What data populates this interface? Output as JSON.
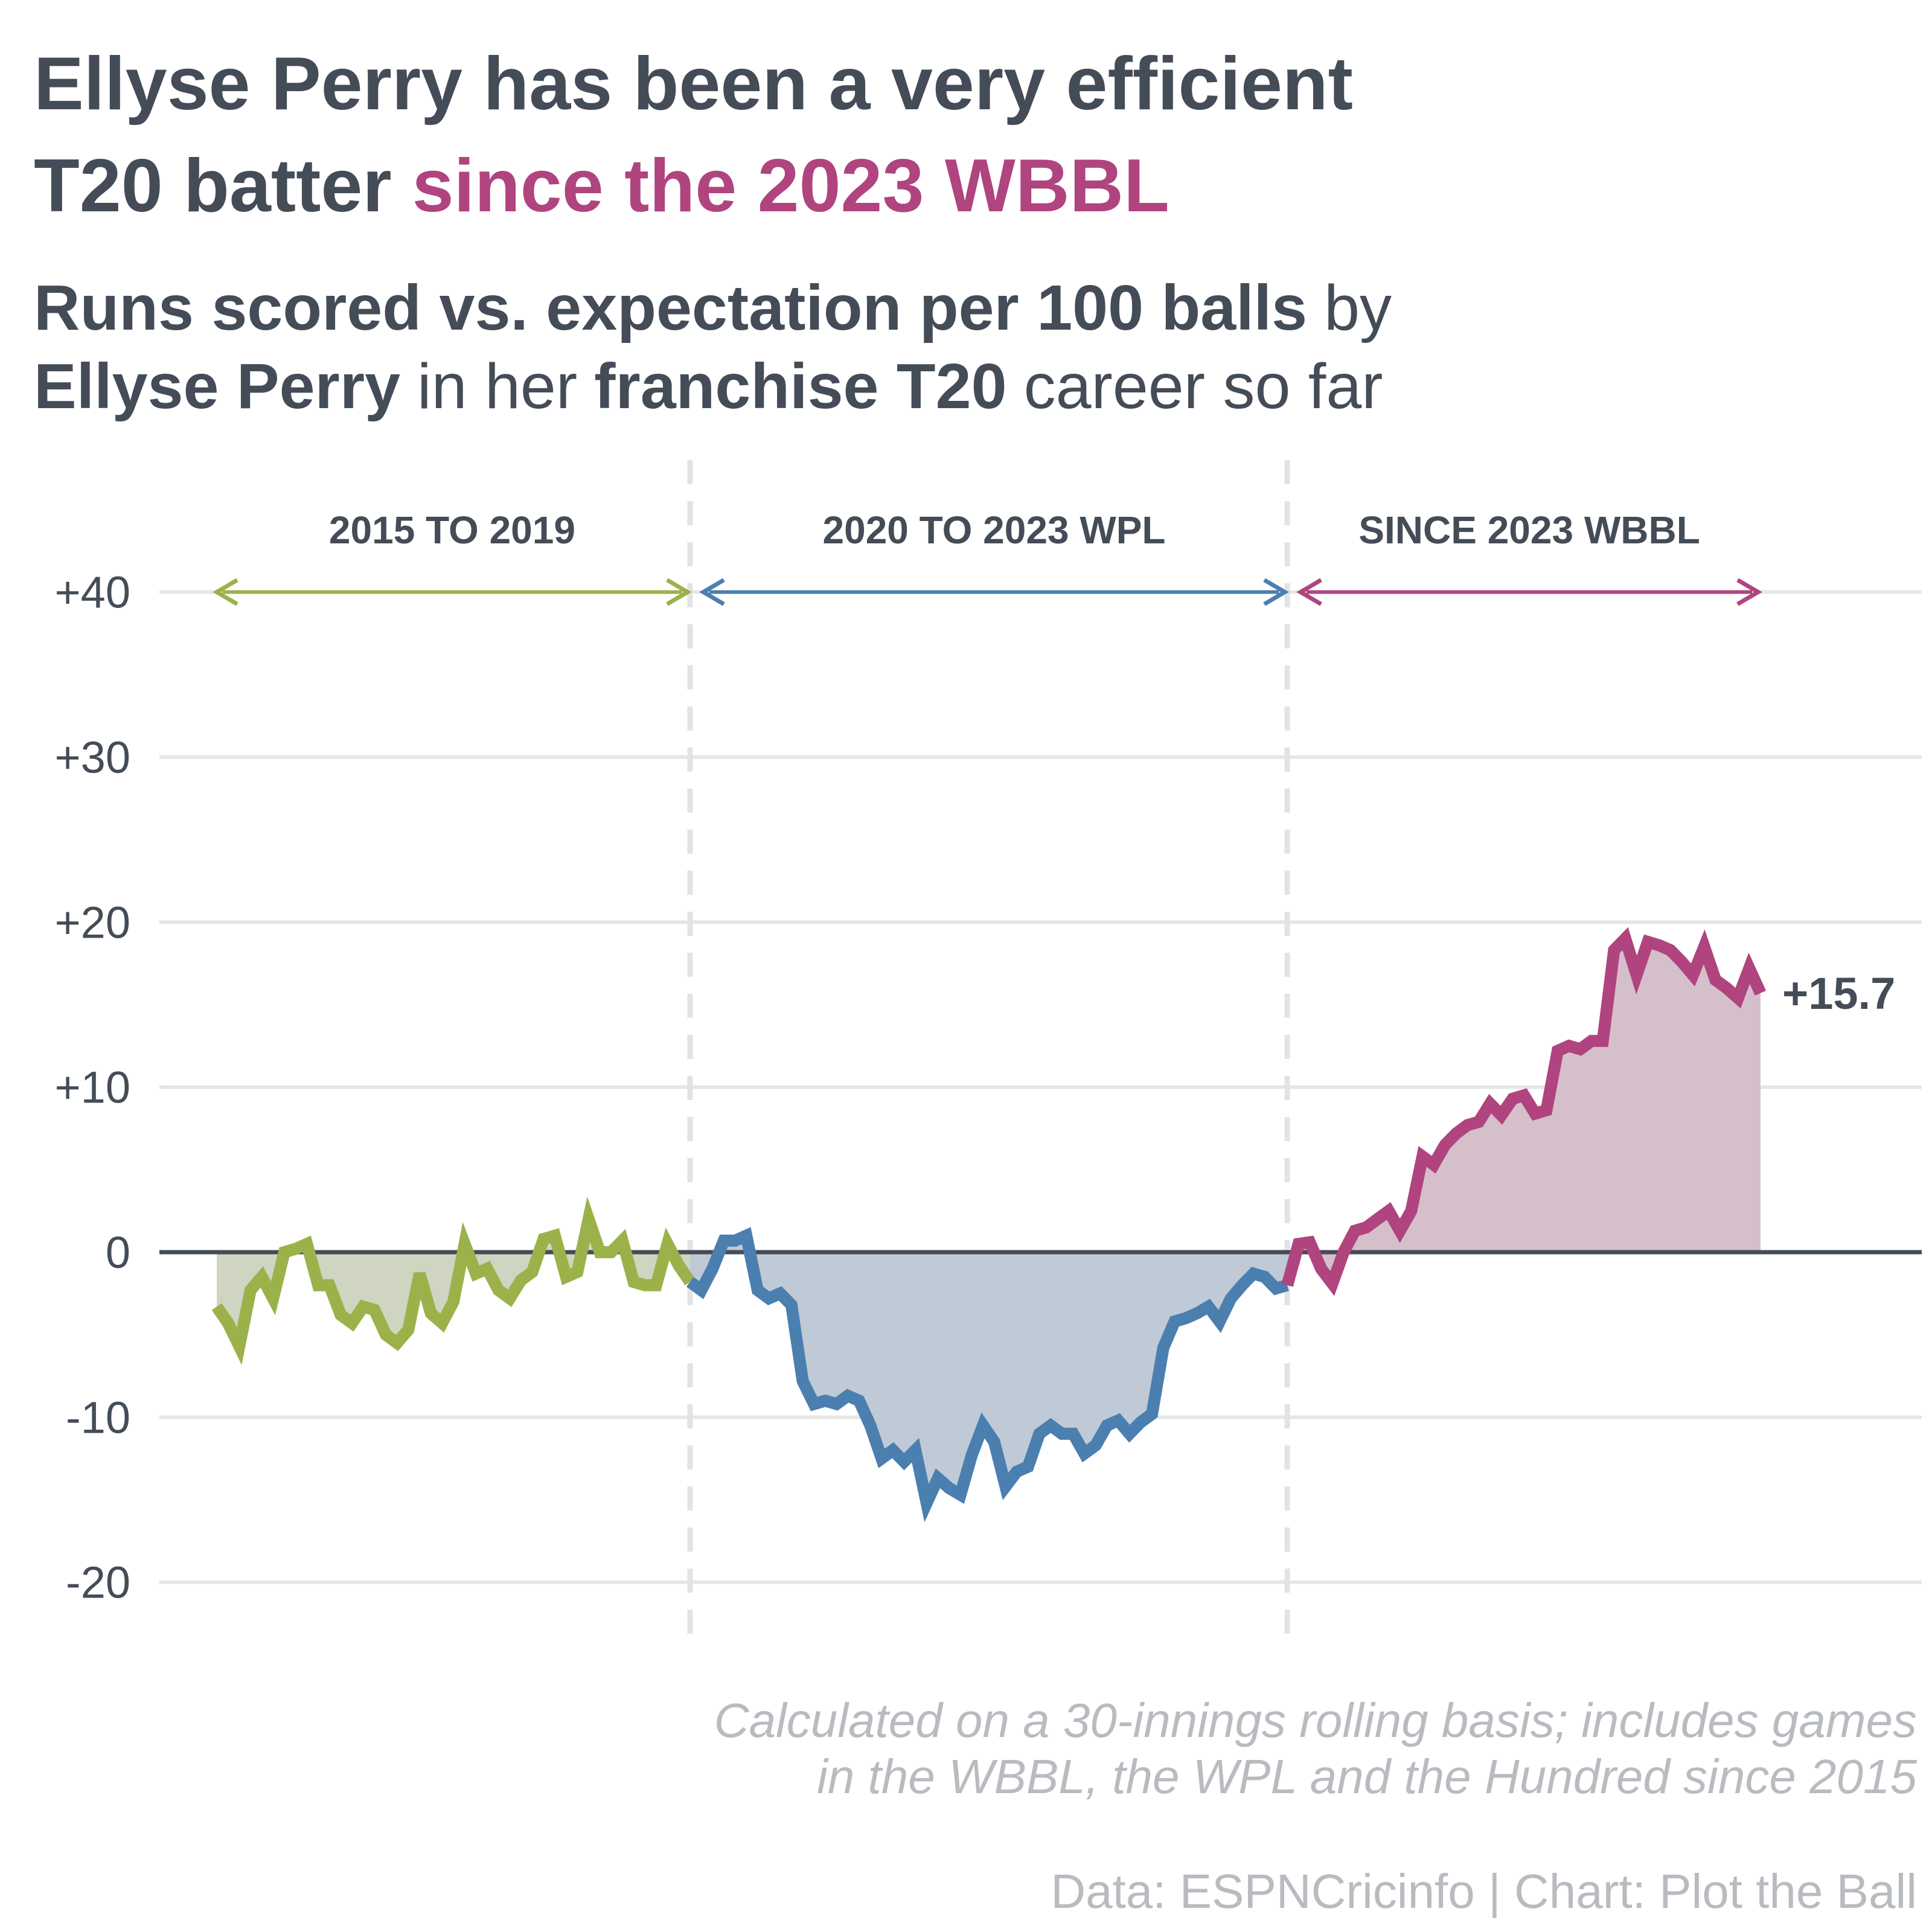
{
  "chart_data": {
    "type": "line",
    "title": [
      "Ellyse Perry has been a very efficient",
      "T20 batter",
      "since the 2023 WBBL"
    ],
    "title_highlight_color": "#b0447f",
    "subtitle": [
      [
        {
          "text": "Runs scored vs. expectation per 100 balls",
          "bold": true
        },
        {
          "text": "by",
          "bold": false
        }
      ],
      [
        {
          "text": "Ellyse Perry",
          "bold": true
        },
        {
          "text": "in her",
          "bold": false
        },
        {
          "text": "franchise T20",
          "bold": true
        },
        {
          "text": "career so far",
          "bold": false
        }
      ]
    ],
    "note": [
      "Calculated on a 30-innings rolling basis; includes games",
      "in the WBBL, the WPL and the Hundred since 2015"
    ],
    "source": "Data: ESPNCricinfo | Chart: Plot the Ball",
    "ylim": [
      -24,
      48
    ],
    "yticks": [
      {
        "value": 40,
        "label": "+40"
      },
      {
        "value": 30,
        "label": "+30"
      },
      {
        "value": 20,
        "label": "+20"
      },
      {
        "value": 10,
        "label": "+10"
      },
      0,
      -10,
      -20
    ],
    "grid": true,
    "series": [
      {
        "name": "2015 TO 2019",
        "color": "#9bb24a",
        "area_color": "#cfd5c0",
        "values": [
          -3.3,
          -4.3,
          -5.7,
          -2.3,
          -1.5,
          -2.8,
          0,
          0.2,
          0.5,
          -2,
          -2,
          -3.8,
          -4.3,
          -3.3,
          -3.5,
          -5,
          -5.5,
          -4.7,
          -1.3,
          -3.7,
          -4.3,
          -3,
          0.5,
          -1.3,
          -1,
          -2.3,
          -2.8,
          -1.7,
          -1.2,
          0.8,
          1,
          -1.5,
          -1.2,
          2,
          0,
          0,
          0.7,
          -1.8,
          -2,
          -2,
          0.5,
          -0.8,
          -1.8
        ]
      },
      {
        "name": "2020 TO 2023 WPL",
        "color": "#4a7fb0",
        "area_color": "#bfcad6",
        "values": [
          -1.8,
          -2.3,
          -1,
          0.7,
          0.7,
          1,
          -2.3,
          -2.8,
          -2.5,
          -3.2,
          -7.8,
          -9.2,
          -9,
          -9.2,
          -8.7,
          -9,
          -10.5,
          -12.5,
          -12,
          -12.7,
          -12,
          -15.2,
          -13.7,
          -14.3,
          -14.7,
          -12.3,
          -10.5,
          -11.5,
          -14.2,
          -13.3,
          -13,
          -11,
          -10.5,
          -11,
          -11,
          -12.2,
          -11.7,
          -10.5,
          -10.2,
          -11,
          -10.3,
          -9.8,
          -5.8,
          -4.2,
          -4,
          -3.7,
          -3.3,
          -4.2,
          -2.8,
          -2,
          -1.3,
          -1.5,
          -2.2,
          -2
        ]
      },
      {
        "name": "SINCE 2023 WBBL",
        "color": "#b0447f",
        "area_color": "#d5bfcb",
        "values": [
          -2,
          0.5,
          0.6,
          -1,
          -1.9,
          0,
          1.3,
          1.5,
          2,
          2.5,
          1.3,
          2.5,
          5.8,
          5.3,
          6.5,
          7.2,
          7.7,
          7.9,
          9,
          8.3,
          9.3,
          9.5,
          8.4,
          8.6,
          12.2,
          12.5,
          12.3,
          12.8,
          12.8,
          18.3,
          19,
          16.8,
          18.8,
          18.6,
          18.3,
          17.6,
          16.8,
          18.5,
          16.5,
          16,
          15.4,
          17.2,
          15.7
        ],
        "value_labels": [
          null,
          null,
          null,
          null,
          null,
          null,
          null,
          null,
          null,
          null,
          null,
          null,
          null,
          null,
          null,
          null,
          null,
          null,
          null,
          null,
          null,
          null,
          null,
          null,
          null,
          null,
          null,
          null,
          null,
          null,
          null,
          null,
          null,
          null,
          null,
          null,
          null,
          null,
          null,
          null,
          null,
          null,
          "+15.7"
        ]
      }
    ]
  }
}
